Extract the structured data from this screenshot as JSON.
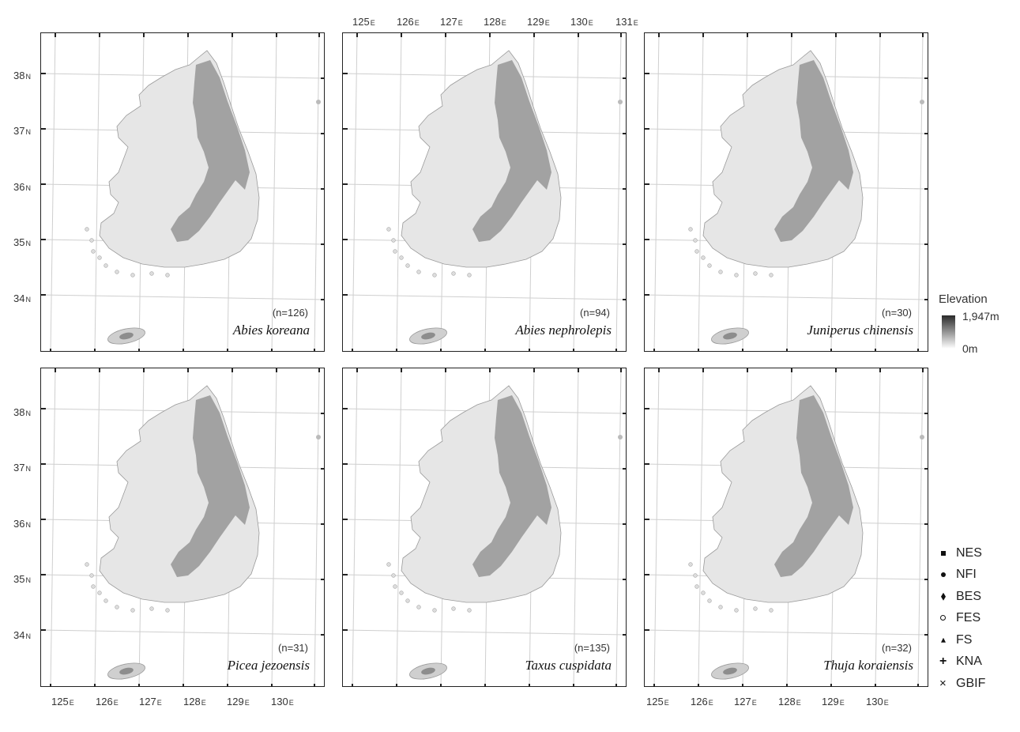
{
  "panels": [
    {
      "id": "abies-koreana",
      "species": "Abies koreana",
      "count": "(n=126)"
    },
    {
      "id": "abies-nephrolepis",
      "species": "Abies nephrolepis",
      "count": "(n=94)"
    },
    {
      "id": "juniperus-chinensis",
      "species": "Juniperus chinensis",
      "count": "(n=30)"
    },
    {
      "id": "picea-jezoensis",
      "species": "Picea jezoensis",
      "count": "(n=31)"
    },
    {
      "id": "taxus-cuspidata",
      "species": "Taxus cuspidata",
      "count": "(n=135)"
    },
    {
      "id": "thuja-koraiensis",
      "species": "Thuja koraiensis",
      "count": "(n=32)"
    }
  ],
  "axes": {
    "longitude_ticks_bottom": [
      {
        "value": "125",
        "hemi": "E"
      },
      {
        "value": "126",
        "hemi": "E"
      },
      {
        "value": "127",
        "hemi": "E"
      },
      {
        "value": "128",
        "hemi": "E"
      },
      {
        "value": "129",
        "hemi": "E"
      },
      {
        "value": "130",
        "hemi": "E"
      }
    ],
    "longitude_ticks_top": [
      {
        "value": "125",
        "hemi": "E"
      },
      {
        "value": "126",
        "hemi": "E"
      },
      {
        "value": "127",
        "hemi": "E"
      },
      {
        "value": "128",
        "hemi": "E"
      },
      {
        "value": "129",
        "hemi": "E"
      },
      {
        "value": "130",
        "hemi": "E"
      },
      {
        "value": "131",
        "hemi": "E"
      }
    ],
    "latitude_ticks": [
      {
        "value": "38",
        "hemi": "N"
      },
      {
        "value": "37",
        "hemi": "N"
      },
      {
        "value": "36",
        "hemi": "N"
      },
      {
        "value": "35",
        "hemi": "N"
      },
      {
        "value": "34",
        "hemi": "N"
      }
    ]
  },
  "elevation_legend": {
    "title": "Elevation",
    "max": "1,947m",
    "min": "0m",
    "colors": [
      "#2a2a2a",
      "#ffffff"
    ]
  },
  "source_legend": [
    {
      "label": "NES",
      "symbol": "square"
    },
    {
      "label": "NFI",
      "symbol": "dot"
    },
    {
      "label": "BES",
      "symbol": "diamond"
    },
    {
      "label": "FES",
      "symbol": "ring"
    },
    {
      "label": "FS",
      "symbol": "triangle"
    },
    {
      "label": "KNA",
      "symbol": "plus"
    },
    {
      "label": "GBIF",
      "symbol": "cross"
    }
  ]
}
